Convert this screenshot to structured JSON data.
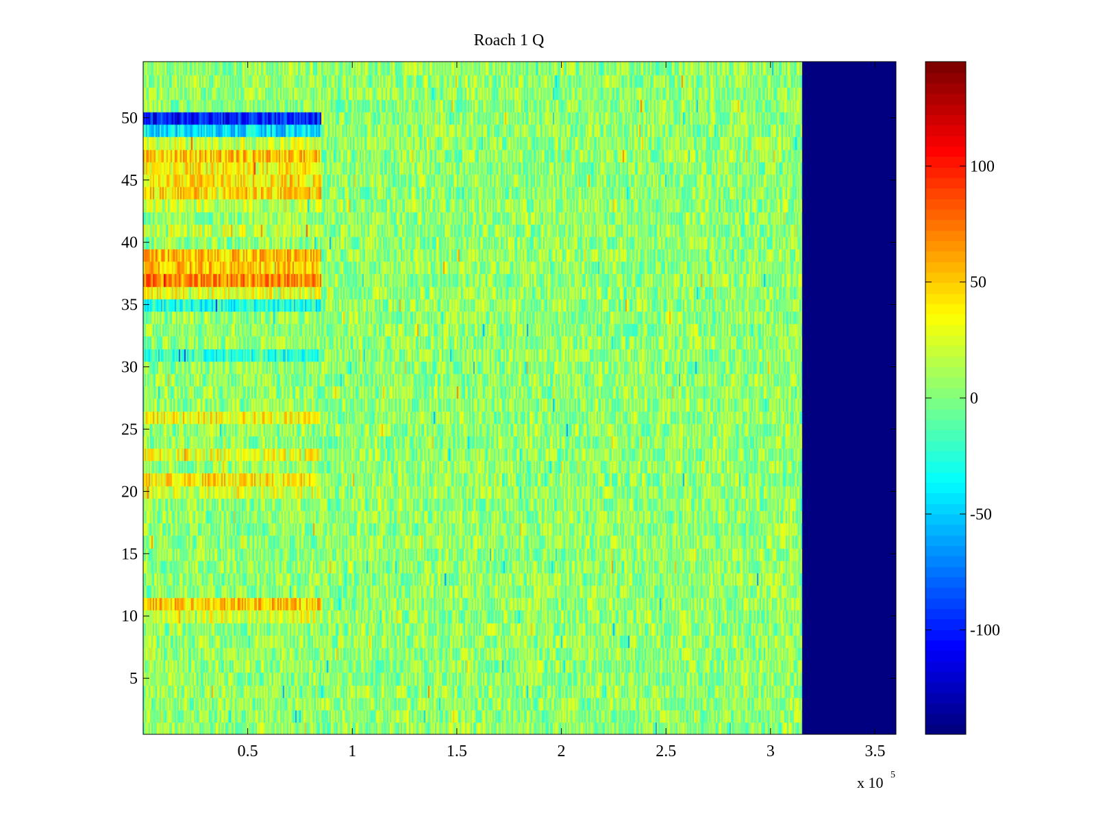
{
  "chart_data": {
    "type": "heatmap",
    "title": "Roach 1 Q",
    "xlabel": "",
    "ylabel": "",
    "x_multiplier_label": "x 10",
    "x_multiplier_exponent": "5",
    "xlim": [
      0,
      3.6
    ],
    "ylim": [
      0.5,
      54.5
    ],
    "x_ticks": [
      0.5,
      1,
      1.5,
      2,
      2.5,
      3,
      3.5
    ],
    "x_tick_labels": [
      "0.5",
      "1",
      "1.5",
      "2",
      "2.5",
      "3",
      "3.5"
    ],
    "y_ticks": [
      5,
      10,
      15,
      20,
      25,
      30,
      35,
      40,
      45,
      50
    ],
    "y_tick_labels": [
      "5",
      "10",
      "15",
      "20",
      "25",
      "30",
      "35",
      "40",
      "45",
      "50"
    ],
    "rows": 54,
    "data_end_x": 3.15,
    "fill_value_after_end": -145,
    "clim": [
      -145,
      145
    ],
    "colorbar": {
      "ticks": [
        -100,
        -50,
        0,
        50,
        100
      ],
      "tick_labels": [
        "-100",
        "-50",
        "0",
        "50",
        "100"
      ],
      "colormap": "jet"
    },
    "early_region_end_x": 0.85,
    "early_row_means": [
      {
        "row": 50,
        "mean": -100
      },
      {
        "row": 49,
        "mean": -45
      },
      {
        "row": 48,
        "mean": 20
      },
      {
        "row": 47,
        "mean": 50
      },
      {
        "row": 46,
        "mean": 35
      },
      {
        "row": 45,
        "mean": 40
      },
      {
        "row": 44,
        "mean": 45
      },
      {
        "row": 43,
        "mean": 15
      },
      {
        "row": 41,
        "mean": 20
      },
      {
        "row": 39,
        "mean": 55
      },
      {
        "row": 38,
        "mean": 50
      },
      {
        "row": 37,
        "mean": 70
      },
      {
        "row": 36,
        "mean": 30
      },
      {
        "row": 35,
        "mean": -30
      },
      {
        "row": 31,
        "mean": -25
      },
      {
        "row": 26,
        "mean": 35
      },
      {
        "row": 23,
        "mean": 30
      },
      {
        "row": 21,
        "mean": 40
      },
      {
        "row": 20,
        "mean": 25
      },
      {
        "row": 11,
        "mean": 50
      },
      {
        "row": 10,
        "mean": 25
      }
    ],
    "background_mean": 5,
    "noise_amplitude": 28
  },
  "colors": {
    "axes_border": "#000000",
    "background": "#ffffff"
  }
}
